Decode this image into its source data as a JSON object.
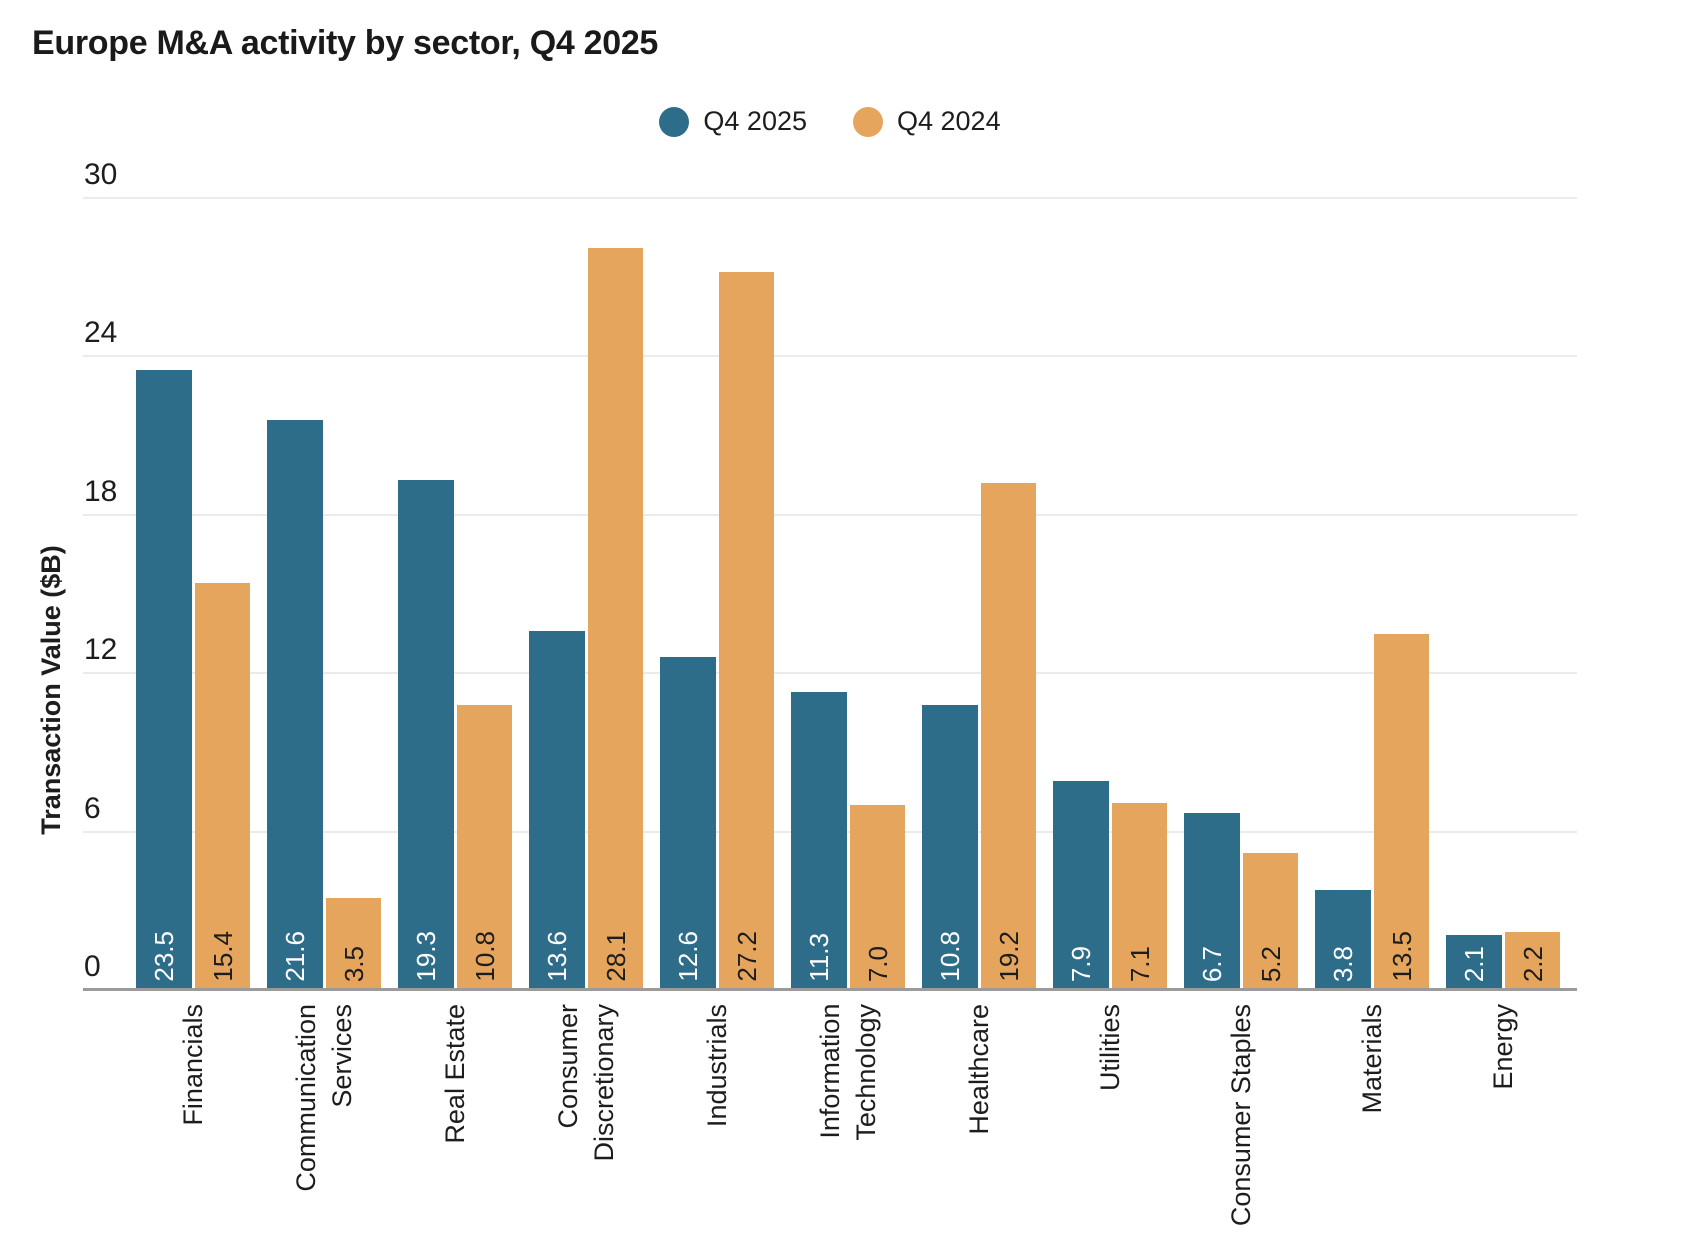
{
  "title": "Europe M&A activity by sector, Q4 2025",
  "legend": [
    {
      "label": "Q4 2025",
      "color": "#2e6d89"
    },
    {
      "label": "Q4 2024",
      "color": "#e6a55d"
    }
  ],
  "colors": {
    "teal": "#2e6d89",
    "orange": "#e6a55d",
    "gridline": "#ebebeb",
    "axis": "#9b9b9b",
    "text": "#1d1d1d"
  },
  "chart_data": {
    "type": "bar",
    "title": "Europe M&A activity by sector, Q4 2025",
    "xlabel": "",
    "ylabel": "Transaction Value ($B)",
    "ylim": [
      0,
      30
    ],
    "yticks": [
      0,
      6,
      12,
      18,
      24,
      30
    ],
    "grid": "horizontal",
    "legend_position": "top-center",
    "categories": [
      "Financials",
      "Communication Services",
      "Real Estate",
      "Consumer Discretionary",
      "Industrials",
      "Information Technology",
      "Healthcare",
      "Utilities",
      "Consumer Staples",
      "Materials",
      "Energy"
    ],
    "series": [
      {
        "name": "Q4 2025",
        "color": "#2e6d89",
        "label_color": "#ffffff",
        "values": [
          23.5,
          21.6,
          19.3,
          13.6,
          12.6,
          11.3,
          10.8,
          7.9,
          6.7,
          3.8,
          2.1
        ]
      },
      {
        "name": "Q4 2024",
        "color": "#e6a55d",
        "label_color": "#1d1d1d",
        "values": [
          15.4,
          3.5,
          10.8,
          28.1,
          27.2,
          7.0,
          19.2,
          7.1,
          5.2,
          13.5,
          2.2
        ]
      }
    ]
  }
}
